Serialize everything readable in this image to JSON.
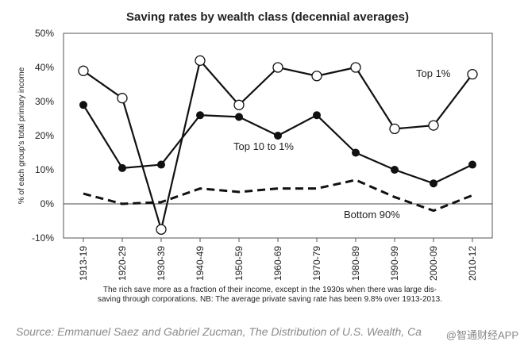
{
  "chart_data": {
    "type": "line",
    "title": "Saving rates by wealth class (decennial averages)",
    "ylabel": "% of each group's total primary income",
    "xlabel": "",
    "ylim": [
      -10,
      50
    ],
    "yticks": [
      "-10%",
      "0%",
      "10%",
      "20%",
      "30%",
      "40%",
      "50%"
    ],
    "ytick_values": [
      -10,
      0,
      10,
      20,
      30,
      40,
      50
    ],
    "categories": [
      "1913-19",
      "1920-29",
      "1930-39",
      "1940-49",
      "1950-59",
      "1960-69",
      "1970-79",
      "1980-89",
      "1990-99",
      "2000-09",
      "2010-12"
    ],
    "series": [
      {
        "name": "Top 1%",
        "style": "solid-open-circle",
        "values": [
          39,
          31,
          -7.5,
          42,
          29,
          40,
          37.5,
          40,
          22,
          23,
          38
        ]
      },
      {
        "name": "Top 10 to 1%",
        "style": "solid-filled-circle",
        "values": [
          29,
          10.5,
          11.5,
          26,
          25.5,
          20,
          26,
          15,
          10,
          6,
          11.5
        ]
      },
      {
        "name": "Bottom 90%",
        "style": "dashed",
        "values": [
          3,
          0,
          0.5,
          4.5,
          3.5,
          4.5,
          4.5,
          7,
          2,
          -2,
          2.5
        ]
      }
    ],
    "annotations": [
      "Top 1%",
      "Top 10 to 1%",
      "Bottom 90%"
    ],
    "grid": false
  },
  "caption": {
    "line1": "The rich save more as a fraction of their income, except in the 1930s when there was large dis-",
    "line2": "saving through corporations. NB: The average private saving rate has been 9.8% over 1913-2013."
  },
  "source": "Source: Emmanuel Saez and Gabriel Zucman, The Distribution of U.S. Wealth, Ca",
  "watermark": "@智通财经APP"
}
